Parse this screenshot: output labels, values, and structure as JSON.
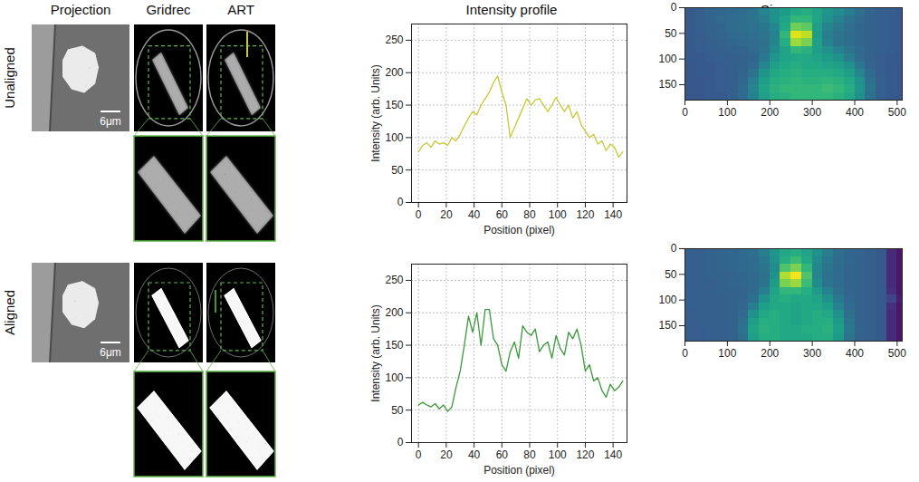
{
  "columns": [
    "Projection",
    "Gridrec",
    "ART",
    "Intensity profile",
    "Sinogram"
  ],
  "rows": [
    {
      "label": "Unaligned",
      "scale_bar": "6μm"
    },
    {
      "label": "Aligned",
      "scale_bar": "6μm"
    }
  ],
  "chart_data": [
    {
      "type": "line",
      "xlabel": "Position (pixel)",
      "ylabel": "Intensity (arb. Units)",
      "x": [
        0,
        3,
        6,
        9,
        12,
        15,
        18,
        21,
        24,
        27,
        30,
        33,
        36,
        39,
        42,
        45,
        48,
        51,
        54,
        57,
        60,
        63,
        66,
        69,
        72,
        75,
        78,
        81,
        84,
        87,
        90,
        93,
        96,
        99,
        102,
        105,
        108,
        111,
        114,
        117,
        120,
        123,
        126,
        129,
        132,
        135,
        138,
        141,
        144,
        147
      ],
      "series": [
        {
          "color": "#c9c934",
          "values": [
            78,
            88,
            92,
            85,
            95,
            90,
            92,
            88,
            100,
            95,
            105,
            118,
            130,
            140,
            135,
            150,
            160,
            170,
            185,
            195,
            170,
            150,
            100,
            115,
            130,
            145,
            160,
            150,
            158,
            160,
            150,
            140,
            150,
            162,
            150,
            140,
            150,
            130,
            140,
            120,
            110,
            100,
            105,
            90,
            95,
            80,
            90,
            85,
            70,
            78
          ]
        }
      ],
      "xlim": [
        -5,
        150
      ],
      "xticks": [
        0,
        20,
        40,
        60,
        80,
        100,
        120,
        140
      ],
      "ylim": [
        0,
        275
      ],
      "yticks": [
        0,
        50,
        100,
        150,
        200,
        250
      ],
      "grid": true
    },
    {
      "type": "heatmap",
      "color": "viridis",
      "x_bins": [
        0,
        25,
        50,
        75,
        100,
        125,
        150,
        175,
        200,
        225,
        250,
        275,
        300,
        325,
        350,
        375,
        400,
        425,
        450,
        475,
        500,
        512
      ],
      "y_bins": [
        0,
        15,
        30,
        45,
        60,
        75,
        90,
        105,
        120,
        135,
        150,
        165,
        180
      ],
      "cells": [
        [
          0.28,
          0.3,
          0.32,
          0.33,
          0.34,
          0.35,
          0.38,
          0.45,
          0.5,
          0.55,
          0.6,
          0.62,
          0.58,
          0.52,
          0.48,
          0.42,
          0.36,
          0.32,
          0.3,
          0.29,
          0.28
        ],
        [
          0.28,
          0.3,
          0.32,
          0.34,
          0.35,
          0.36,
          0.38,
          0.42,
          0.5,
          0.58,
          0.66,
          0.66,
          0.58,
          0.5,
          0.44,
          0.38,
          0.34,
          0.31,
          0.3,
          0.29,
          0.28
        ],
        [
          0.28,
          0.3,
          0.31,
          0.33,
          0.35,
          0.36,
          0.37,
          0.4,
          0.46,
          0.6,
          0.78,
          0.75,
          0.56,
          0.45,
          0.4,
          0.36,
          0.33,
          0.31,
          0.3,
          0.29,
          0.28
        ],
        [
          0.28,
          0.29,
          0.31,
          0.32,
          0.34,
          0.35,
          0.36,
          0.38,
          0.44,
          0.66,
          0.95,
          0.9,
          0.55,
          0.42,
          0.38,
          0.35,
          0.33,
          0.31,
          0.3,
          0.29,
          0.28
        ],
        [
          0.28,
          0.29,
          0.3,
          0.31,
          0.33,
          0.34,
          0.35,
          0.37,
          0.45,
          0.62,
          0.85,
          0.8,
          0.56,
          0.44,
          0.38,
          0.35,
          0.33,
          0.31,
          0.3,
          0.29,
          0.28
        ],
        [
          0.28,
          0.29,
          0.3,
          0.3,
          0.31,
          0.32,
          0.34,
          0.38,
          0.48,
          0.58,
          0.66,
          0.64,
          0.56,
          0.5,
          0.44,
          0.38,
          0.34,
          0.31,
          0.3,
          0.29,
          0.28
        ],
        [
          0.28,
          0.28,
          0.29,
          0.3,
          0.3,
          0.31,
          0.33,
          0.4,
          0.52,
          0.58,
          0.6,
          0.6,
          0.58,
          0.55,
          0.5,
          0.42,
          0.35,
          0.31,
          0.29,
          0.28,
          0.28
        ],
        [
          0.27,
          0.28,
          0.28,
          0.29,
          0.3,
          0.31,
          0.34,
          0.45,
          0.56,
          0.6,
          0.62,
          0.6,
          0.6,
          0.58,
          0.56,
          0.5,
          0.4,
          0.32,
          0.29,
          0.28,
          0.27
        ],
        [
          0.27,
          0.28,
          0.28,
          0.29,
          0.3,
          0.32,
          0.38,
          0.52,
          0.6,
          0.62,
          0.64,
          0.62,
          0.62,
          0.62,
          0.6,
          0.56,
          0.45,
          0.34,
          0.29,
          0.28,
          0.27
        ],
        [
          0.27,
          0.27,
          0.28,
          0.29,
          0.3,
          0.33,
          0.42,
          0.56,
          0.62,
          0.64,
          0.65,
          0.64,
          0.64,
          0.65,
          0.64,
          0.6,
          0.5,
          0.36,
          0.3,
          0.28,
          0.27
        ],
        [
          0.27,
          0.27,
          0.28,
          0.29,
          0.3,
          0.34,
          0.45,
          0.58,
          0.64,
          0.66,
          0.66,
          0.66,
          0.66,
          0.68,
          0.66,
          0.62,
          0.52,
          0.38,
          0.3,
          0.28,
          0.27
        ],
        [
          0.27,
          0.27,
          0.28,
          0.28,
          0.3,
          0.34,
          0.44,
          0.56,
          0.62,
          0.64,
          0.66,
          0.66,
          0.66,
          0.66,
          0.64,
          0.6,
          0.5,
          0.37,
          0.3,
          0.28,
          0.27
        ]
      ],
      "zlim": [
        0,
        1
      ],
      "xlim": [
        0,
        512
      ],
      "xticks": [
        0,
        100,
        200,
        300,
        400,
        500
      ],
      "ylim": [
        0,
        180
      ],
      "yticks": [
        0,
        50,
        100,
        150
      ]
    },
    {
      "type": "line",
      "xlabel": "Position (pixel)",
      "ylabel": "Intensity (arb. Units)",
      "x": [
        0,
        3,
        6,
        9,
        12,
        15,
        18,
        21,
        24,
        27,
        30,
        33,
        36,
        39,
        42,
        45,
        48,
        51,
        54,
        57,
        60,
        63,
        66,
        69,
        72,
        75,
        78,
        81,
        84,
        87,
        90,
        93,
        96,
        99,
        102,
        105,
        108,
        111,
        114,
        117,
        120,
        123,
        126,
        129,
        132,
        135,
        138,
        141,
        144,
        147
      ],
      "series": [
        {
          "color": "#3a9a3a",
          "values": [
            58,
            62,
            58,
            55,
            60,
            52,
            58,
            48,
            55,
            85,
            110,
            150,
            195,
            170,
            200,
            150,
            205,
            205,
            160,
            150,
            120,
            110,
            140,
            155,
            130,
            180,
            170,
            165,
            175,
            140,
            150,
            155,
            130,
            165,
            145,
            135,
            170,
            160,
            175,
            150,
            110,
            120,
            95,
            100,
            80,
            70,
            90,
            80,
            85,
            95
          ]
        }
      ],
      "xlim": [
        -5,
        150
      ],
      "xticks": [
        0,
        20,
        40,
        60,
        80,
        100,
        120,
        140
      ],
      "ylim": [
        0,
        275
      ],
      "yticks": [
        0,
        50,
        100,
        150,
        200,
        250
      ],
      "grid": true
    },
    {
      "type": "heatmap",
      "color": "viridis",
      "x_bins": [
        0,
        25,
        50,
        75,
        100,
        125,
        150,
        175,
        200,
        225,
        250,
        275,
        300,
        325,
        350,
        375,
        400,
        425,
        450,
        475,
        500,
        512
      ],
      "y_bins": [
        0,
        15,
        30,
        45,
        60,
        75,
        90,
        105,
        120,
        135,
        150,
        165,
        180
      ],
      "cells": [
        [
          0.3,
          0.3,
          0.31,
          0.32,
          0.33,
          0.34,
          0.36,
          0.42,
          0.52,
          0.6,
          0.62,
          0.58,
          0.5,
          0.42,
          0.36,
          0.33,
          0.32,
          0.3,
          0.28,
          0.12,
          0.06
        ],
        [
          0.3,
          0.3,
          0.31,
          0.32,
          0.33,
          0.34,
          0.35,
          0.4,
          0.5,
          0.62,
          0.68,
          0.6,
          0.48,
          0.4,
          0.35,
          0.33,
          0.31,
          0.3,
          0.28,
          0.12,
          0.06
        ],
        [
          0.3,
          0.3,
          0.31,
          0.32,
          0.33,
          0.34,
          0.35,
          0.38,
          0.48,
          0.72,
          0.8,
          0.66,
          0.46,
          0.38,
          0.34,
          0.32,
          0.31,
          0.3,
          0.28,
          0.12,
          0.06
        ],
        [
          0.3,
          0.3,
          0.31,
          0.31,
          0.32,
          0.33,
          0.34,
          0.37,
          0.5,
          0.88,
          0.98,
          0.72,
          0.45,
          0.37,
          0.34,
          0.32,
          0.31,
          0.3,
          0.28,
          0.12,
          0.06
        ],
        [
          0.3,
          0.3,
          0.3,
          0.31,
          0.32,
          0.33,
          0.34,
          0.38,
          0.55,
          0.8,
          0.85,
          0.68,
          0.48,
          0.38,
          0.34,
          0.32,
          0.31,
          0.3,
          0.28,
          0.12,
          0.06
        ],
        [
          0.3,
          0.3,
          0.3,
          0.31,
          0.31,
          0.32,
          0.34,
          0.42,
          0.58,
          0.66,
          0.66,
          0.62,
          0.54,
          0.44,
          0.36,
          0.32,
          0.31,
          0.3,
          0.28,
          0.14,
          0.06
        ],
        [
          0.3,
          0.3,
          0.3,
          0.3,
          0.31,
          0.32,
          0.36,
          0.5,
          0.6,
          0.62,
          0.6,
          0.6,
          0.58,
          0.5,
          0.4,
          0.33,
          0.31,
          0.3,
          0.28,
          0.2,
          0.08
        ],
        [
          0.3,
          0.3,
          0.3,
          0.3,
          0.31,
          0.33,
          0.42,
          0.56,
          0.6,
          0.6,
          0.58,
          0.6,
          0.6,
          0.56,
          0.44,
          0.34,
          0.31,
          0.3,
          0.28,
          0.14,
          0.06
        ],
        [
          0.29,
          0.3,
          0.3,
          0.3,
          0.31,
          0.34,
          0.5,
          0.6,
          0.62,
          0.6,
          0.58,
          0.6,
          0.62,
          0.6,
          0.5,
          0.36,
          0.31,
          0.3,
          0.28,
          0.12,
          0.06
        ],
        [
          0.29,
          0.3,
          0.3,
          0.3,
          0.31,
          0.36,
          0.56,
          0.62,
          0.62,
          0.6,
          0.58,
          0.6,
          0.62,
          0.62,
          0.55,
          0.38,
          0.31,
          0.3,
          0.28,
          0.12,
          0.06
        ],
        [
          0.29,
          0.29,
          0.3,
          0.3,
          0.31,
          0.38,
          0.58,
          0.64,
          0.62,
          0.6,
          0.6,
          0.62,
          0.62,
          0.64,
          0.56,
          0.4,
          0.32,
          0.3,
          0.28,
          0.12,
          0.06
        ],
        [
          0.29,
          0.29,
          0.3,
          0.3,
          0.31,
          0.36,
          0.56,
          0.62,
          0.62,
          0.6,
          0.6,
          0.6,
          0.62,
          0.62,
          0.54,
          0.38,
          0.31,
          0.3,
          0.28,
          0.12,
          0.06
        ]
      ],
      "zlim": [
        0,
        1
      ],
      "xlim": [
        0,
        512
      ],
      "xticks": [
        0,
        100,
        200,
        300,
        400,
        500
      ],
      "ylim": [
        0,
        180
      ],
      "yticks": [
        0,
        50,
        100,
        150
      ]
    }
  ]
}
